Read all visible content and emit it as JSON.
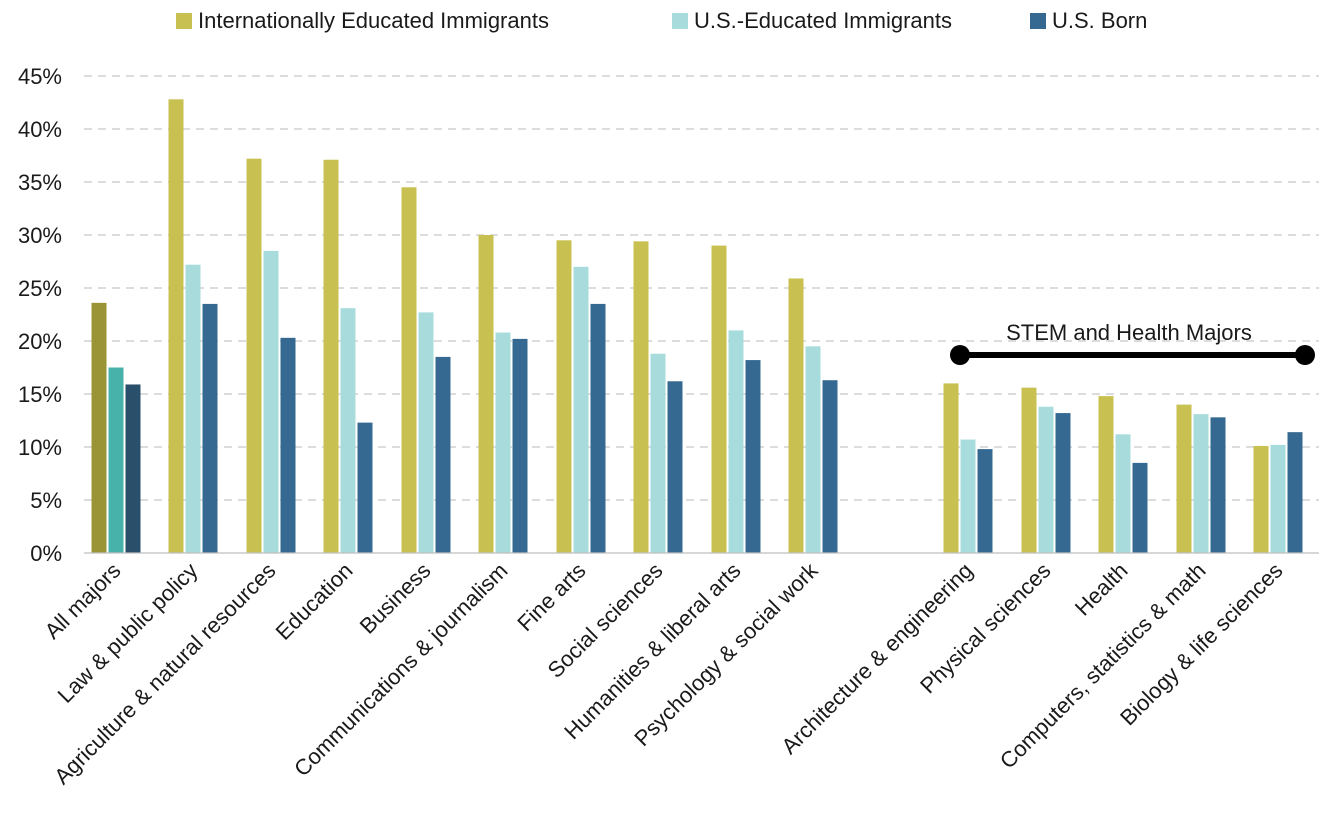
{
  "chart_data": {
    "type": "bar",
    "categories": [
      "All majors",
      "Law & public policy",
      "Agriculture & natural resources",
      "Education",
      "Business",
      "Communications & journalism",
      "Fine arts",
      "Social sciences",
      "Humanities & liberal arts",
      "Psychology & social work",
      "Architecture & engineering",
      "Physical sciences",
      "Health",
      "Computers, statistics & math",
      "Biology & life sciences"
    ],
    "series": [
      {
        "name": "Internationally Educated Immigrants",
        "color": "#c8c050",
        "values": [
          23.6,
          42.8,
          37.2,
          37.1,
          34.5,
          30.0,
          29.5,
          29.4,
          29.0,
          25.9,
          16.0,
          15.6,
          14.8,
          14.0,
          10.1
        ]
      },
      {
        "name": "U.S.-Educated Immigrants",
        "color": "#a8dcdc",
        "values": [
          17.5,
          27.2,
          28.5,
          23.1,
          22.7,
          20.8,
          27.0,
          18.8,
          21.0,
          19.5,
          10.7,
          13.8,
          11.2,
          13.1,
          10.2
        ]
      },
      {
        "name": "U.S. Born",
        "color": "#356991",
        "values": [
          15.9,
          23.5,
          20.3,
          12.3,
          18.5,
          20.2,
          23.5,
          16.2,
          18.2,
          16.3,
          9.8,
          13.2,
          8.5,
          12.8,
          11.4
        ]
      }
    ],
    "highlight_colors": [
      "#9b9436",
      "#47b2aa",
      "#2a4f6b"
    ],
    "ylim": [
      0,
      45
    ],
    "yticks": [
      "0%",
      "5%",
      "10%",
      "15%",
      "20%",
      "25%",
      "30%",
      "35%",
      "40%",
      "45%"
    ],
    "grid": true,
    "legend_position": "top",
    "annotation": "STEM and Health Majors"
  }
}
